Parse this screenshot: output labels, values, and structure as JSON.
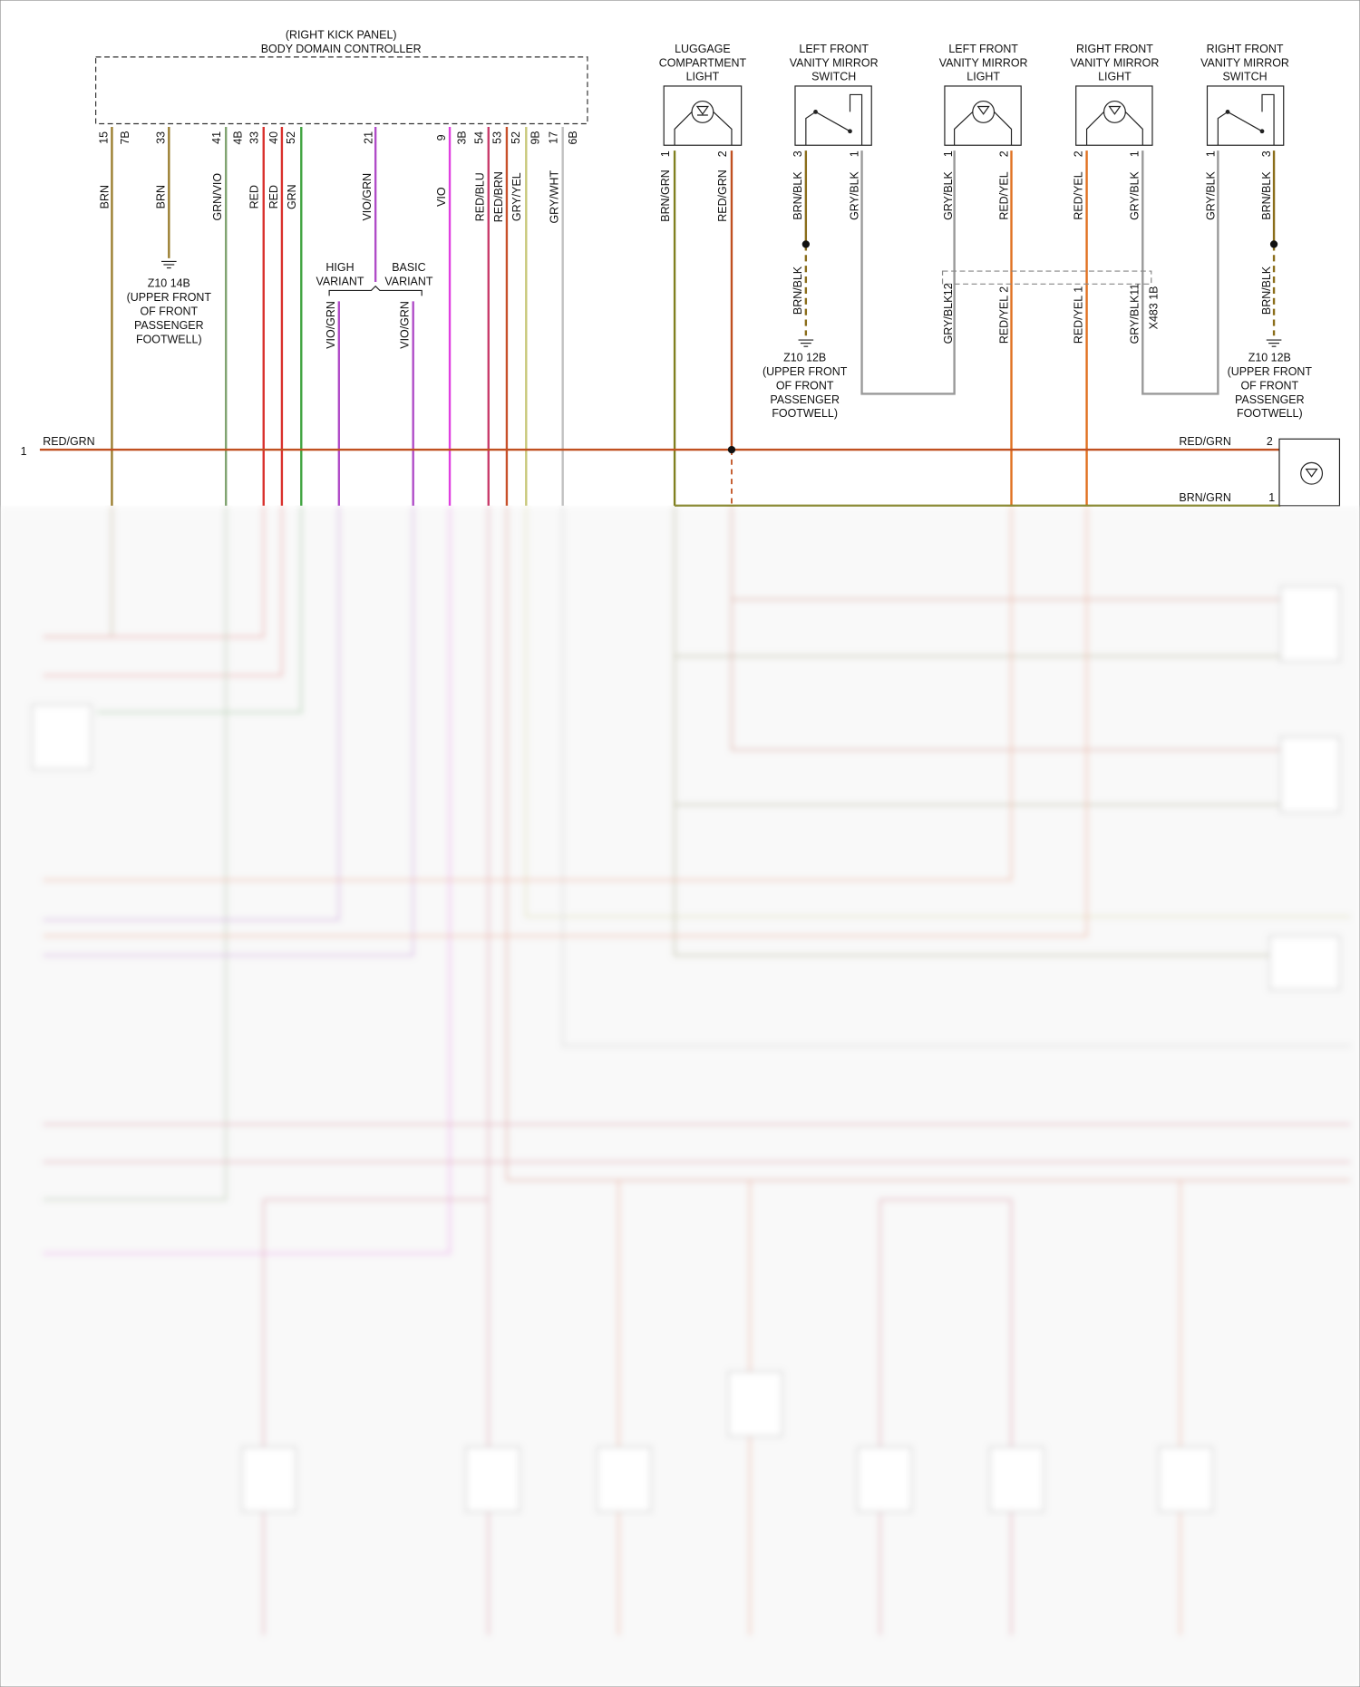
{
  "controller": {
    "location": "(RIGHT KICK PANEL)",
    "name": "BODY DOMAIN CONTROLLER",
    "pins": [
      "15",
      "7B",
      "33",
      "41",
      "4B",
      "33",
      "40",
      "52",
      "21",
      "9",
      "3B",
      "54",
      "53",
      "52",
      "9B",
      "17",
      "6B"
    ]
  },
  "controller_wires": [
    "BRN",
    "BRN",
    "GRN/VIO",
    "RED",
    "RED",
    "GRN",
    "VIO/GRN",
    "VIO",
    "RED/BLU",
    "RED/BRN",
    "GRY/YEL",
    "GRY/WHT"
  ],
  "ground_z10_14b": {
    "id": "Z10 14B",
    "location": [
      "(UPPER FRONT",
      "OF FRONT",
      "PASSENGER",
      "FOOTWELL)"
    ]
  },
  "variants": {
    "high": [
      "HIGH",
      "VARIANT"
    ],
    "basic": [
      "BASIC",
      "VARIANT"
    ],
    "wires": [
      "VIO/GRN",
      "VIO/GRN"
    ]
  },
  "components": [
    {
      "name": [
        "LUGGAGE",
        "COMPARTMENT",
        "LIGHT"
      ],
      "pins": [
        "1",
        "2"
      ],
      "wires": [
        "BRN/GRN",
        "RED/GRN"
      ]
    },
    {
      "name": [
        "LEFT FRONT",
        "VANITY MIRROR",
        "SWITCH"
      ],
      "pins": [
        "3",
        "1"
      ],
      "wires": [
        "BRN/BLK",
        "GRY/BLK"
      ]
    },
    {
      "name": [
        "LEFT FRONT",
        "VANITY MIRROR",
        "LIGHT"
      ],
      "pins": [
        "1",
        "2"
      ],
      "wires": [
        "GRY/BLK",
        "RED/YEL"
      ]
    },
    {
      "name": [
        "RIGHT FRONT",
        "VANITY MIRROR",
        "LIGHT"
      ],
      "pins": [
        "2",
        "1"
      ],
      "wires": [
        "RED/YEL",
        "GRY/BLK"
      ]
    },
    {
      "name": [
        "RIGHT FRONT",
        "VANITY MIRROR",
        "SWITCH"
      ],
      "pins": [
        "1",
        "3"
      ],
      "wires": [
        "GRY/BLK",
        "BRN/BLK"
      ]
    }
  ],
  "connector_x483": {
    "id": "X483 1B",
    "pins": [
      "12",
      "2",
      "1",
      "11"
    ],
    "wires": [
      "GRY/BLK",
      "RED/YEL",
      "RED/YEL",
      "GRY/BLK"
    ]
  },
  "grounds_z10_12b": [
    {
      "id": "Z10 12B",
      "wire": "BRN/BLK",
      "location": [
        "(UPPER FRONT",
        "OF FRONT",
        "PASSENGER",
        "FOOTWELL)"
      ]
    },
    {
      "id": "Z10 12B",
      "wire": "BRN/BLK",
      "location": [
        "(UPPER FRONT",
        "OF FRONT",
        "PASSENGER",
        "FOOTWELL)"
      ]
    }
  ],
  "bus": {
    "pin": "1",
    "wire": "RED/GRN",
    "right_wire": "RED/GRN",
    "right_pin": "2",
    "lower_wire": "BRN/GRN",
    "lower_pin": "1"
  }
}
